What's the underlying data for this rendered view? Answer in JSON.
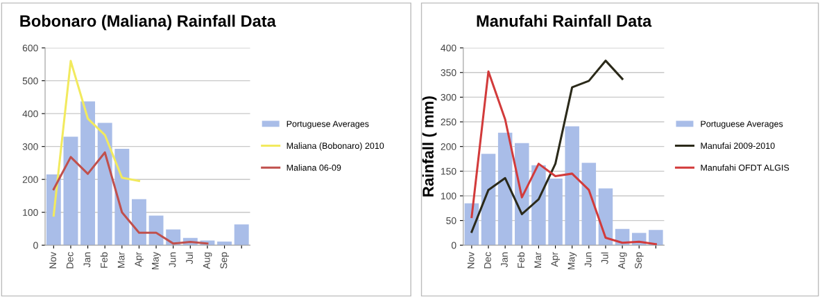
{
  "chart_data": [
    {
      "type": "bar",
      "title": "Bobonaro (Maliana) Rainfall Data",
      "categories": [
        "Nov",
        "Dec",
        "Jan",
        "Feb",
        "Mar",
        "Apr",
        "May",
        "Jun",
        "Jul",
        "Aug",
        "Sep",
        null
      ],
      "ylim": [
        0,
        600
      ],
      "yticks": [
        0,
        100,
        200,
        300,
        400,
        500,
        600
      ],
      "grid": "y",
      "legend": "right",
      "series": [
        {
          "name": "Portuguese Averages",
          "color": "#a9bde8",
          "values": [
            215,
            330,
            437,
            372,
            293,
            140,
            90,
            48,
            22,
            14,
            11,
            63
          ]
        },
        {
          "name": "Maliana (Bobonaro) 2010",
          "type": "line",
          "color": "#f2ea5e",
          "values": [
            90,
            560,
            385,
            335,
            205,
            195,
            null,
            null,
            null,
            null,
            null,
            null
          ]
        },
        {
          "name": "Maliana 06-09",
          "type": "line",
          "color": "#c0504d",
          "values": [
            170,
            268,
            217,
            282,
            100,
            38,
            38,
            5,
            10,
            5,
            null,
            null
          ]
        }
      ]
    },
    {
      "type": "bar",
      "title": "Manufahi Rainfall Data",
      "ylabel": "Rainfall ( mm)",
      "categories": [
        "Nov",
        "Dec",
        "Jan",
        "Feb",
        "Mar",
        "Apr",
        "May",
        "Jun",
        "Jul",
        "Aug",
        "Sep",
        null
      ],
      "ylim": [
        0,
        400
      ],
      "yticks": [
        0,
        50,
        100,
        150,
        200,
        250,
        300,
        350,
        400
      ],
      "grid": "y",
      "legend": "right",
      "series": [
        {
          "name": "Portuguese Averages",
          "color": "#a9bde8",
          "values": [
            85,
            185,
            228,
            207,
            162,
            135,
            241,
            167,
            115,
            33,
            25,
            31
          ]
        },
        {
          "name": "Manufai 2009-2010",
          "type": "line",
          "color": "#2b2a1a",
          "values": [
            27,
            112,
            136,
            63,
            93,
            165,
            320,
            333,
            374,
            337,
            null,
            null
          ]
        },
        {
          "name": "Manufahi OFDT ALGIS",
          "type": "line",
          "color": "#d23b3b",
          "values": [
            57,
            352,
            255,
            97,
            165,
            140,
            145,
            112,
            15,
            5,
            7,
            2
          ]
        }
      ]
    }
  ]
}
